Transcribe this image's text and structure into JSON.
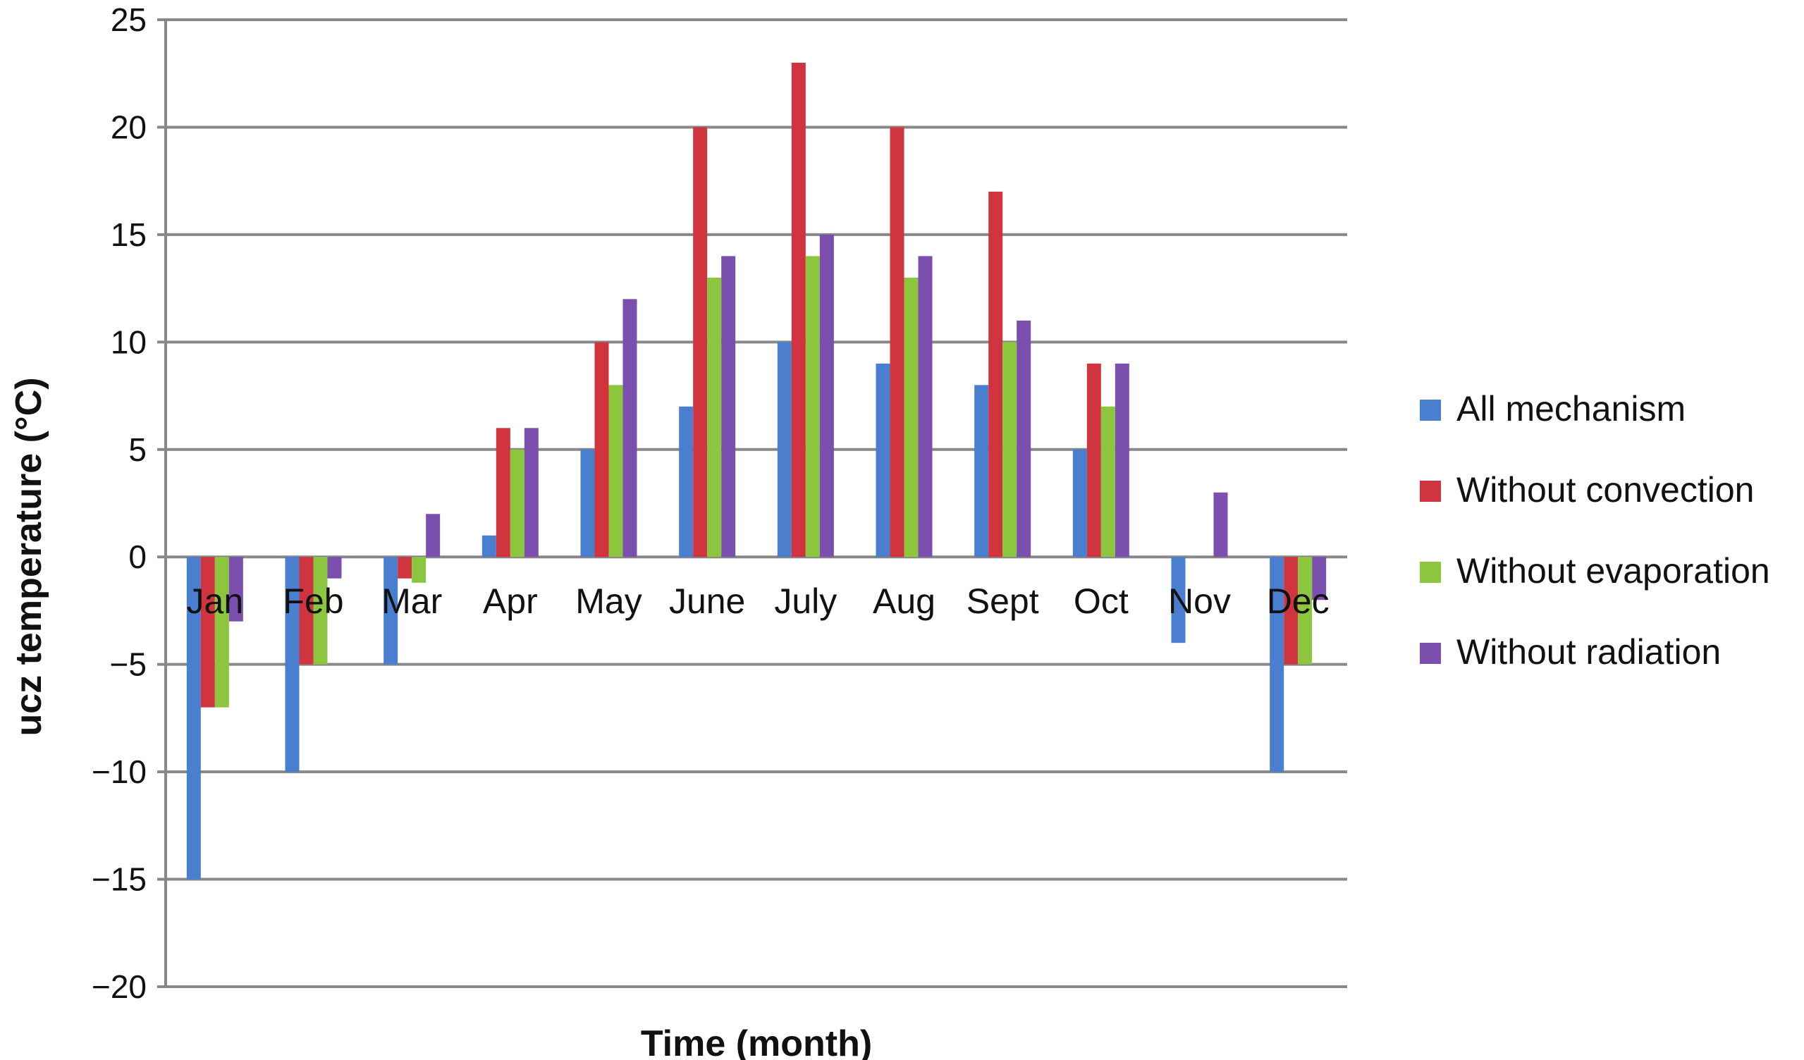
{
  "chart_data": {
    "type": "bar",
    "title": "",
    "xlabel": "Time (month)",
    "ylabel": "ucz temperature (°C)",
    "ylim": [
      -20,
      25
    ],
    "yticks": [
      25,
      20,
      15,
      10,
      5,
      0,
      -5,
      -10,
      -15,
      -20
    ],
    "ytick_labels": [
      "25",
      "20",
      "15",
      "10",
      "5",
      "0",
      "−5",
      "−10",
      "−15",
      "−20"
    ],
    "grid": "horizontal",
    "legend_position": "right",
    "categories": [
      "Jan",
      "Feb",
      "Mar",
      "Apr",
      "May",
      "June",
      "July",
      "Aug",
      "Sept",
      "Oct",
      "Nov",
      "Dec"
    ],
    "series": [
      {
        "name": "All mechanism",
        "color": "#4a7fd0",
        "values": [
          -15,
          -10,
          -5,
          1,
          5,
          7,
          10,
          9,
          8,
          5,
          -4,
          -10
        ]
      },
      {
        "name": "Without convection",
        "color": "#d0343f",
        "values": [
          -7,
          -5,
          -1,
          6,
          10,
          20,
          23,
          20,
          17,
          9,
          0,
          -5
        ]
      },
      {
        "name": "Without evaporation",
        "color": "#8cc63f",
        "values": [
          -7,
          -5,
          -1.2,
          5,
          8,
          13,
          14,
          13,
          10,
          7,
          0,
          -5
        ]
      },
      {
        "name": "Without radiation",
        "color": "#7a4fae",
        "values": [
          -3,
          -1,
          2,
          6,
          12,
          14,
          15,
          14,
          11,
          9,
          3,
          -2
        ]
      }
    ]
  }
}
